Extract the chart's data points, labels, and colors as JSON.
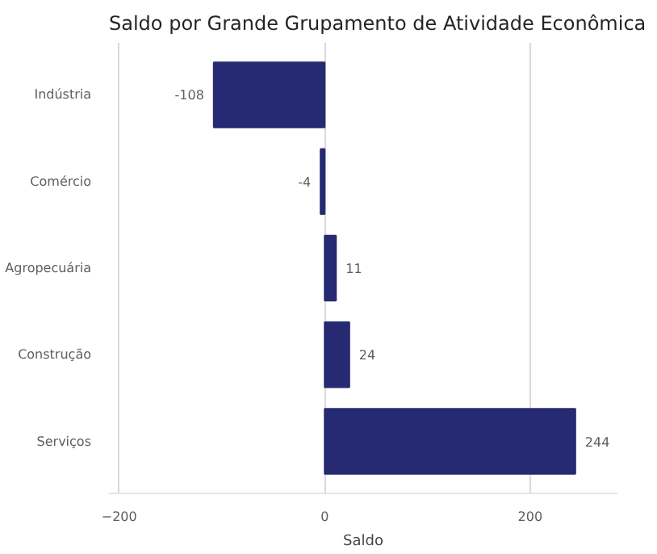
{
  "chart_data": {
    "type": "bar",
    "orientation": "horizontal",
    "title": "Saldo por Grande Grupamento de Atividade Econômica",
    "xlabel": "Saldo",
    "categories": [
      "Indústria",
      "Comércio",
      "Agropecuária",
      "Construção",
      "Serviços"
    ],
    "values": [
      -108,
      -4,
      11,
      24,
      244
    ],
    "color": "#252a72",
    "xlim": [
      -210,
      285
    ],
    "xticks": [
      -200,
      0,
      200
    ],
    "grid": "x",
    "data_labels": true
  }
}
